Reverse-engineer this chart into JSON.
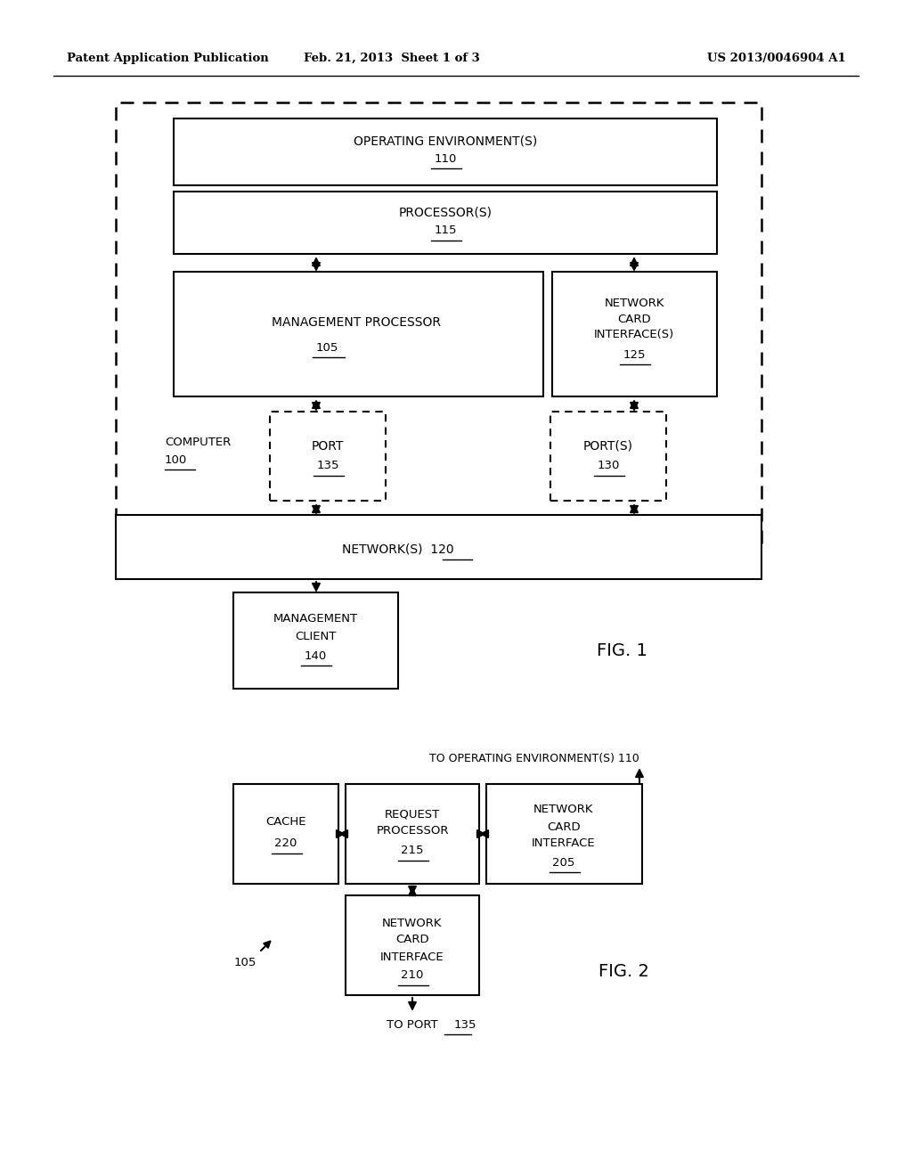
{
  "bg_color": "#ffffff",
  "header_left": "Patent Application Publication",
  "header_mid": "Feb. 21, 2013  Sheet 1 of 3",
  "header_right": "US 2013/0046904 A1",
  "fig1_label": "FIG. 1",
  "fig2_label": "FIG. 2",
  "line_color": "#000000",
  "text_color": "#000000"
}
